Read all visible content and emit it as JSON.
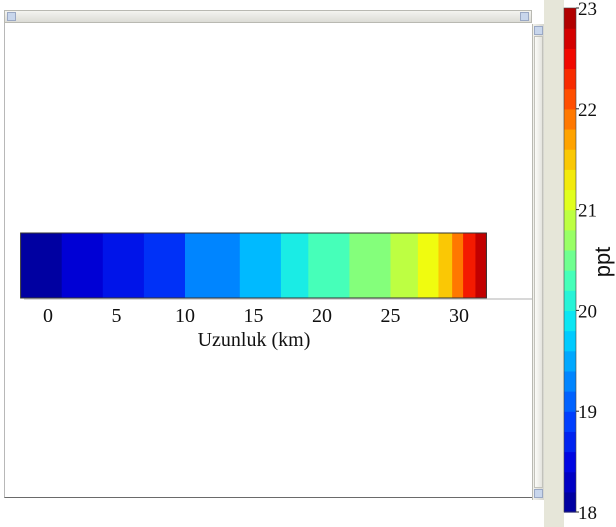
{
  "chart_data": {
    "type": "heatmap",
    "xlabel": "Uzunluk (km)",
    "xlim": [
      -2,
      32
    ],
    "x_ticks": [
      0,
      5,
      10,
      15,
      20,
      25,
      30
    ],
    "cells": [
      {
        "x0": -2,
        "x1": 1,
        "value": 18.1
      },
      {
        "x0": 1,
        "x1": 4,
        "value": 18.4
      },
      {
        "x0": 4,
        "x1": 7,
        "value": 18.6
      },
      {
        "x0": 7,
        "x1": 10,
        "value": 18.8
      },
      {
        "x0": 10,
        "x1": 14,
        "value": 19.3
      },
      {
        "x0": 14,
        "x1": 17,
        "value": 19.6
      },
      {
        "x0": 17,
        "x1": 19,
        "value": 20.0
      },
      {
        "x0": 19,
        "x1": 22,
        "value": 20.3
      },
      {
        "x0": 22,
        "x1": 25,
        "value": 20.6
      },
      {
        "x0": 25,
        "x1": 27,
        "value": 20.9
      },
      {
        "x0": 27,
        "x1": 28.5,
        "value": 21.2
      },
      {
        "x0": 28.5,
        "x1": 29.5,
        "value": 21.5
      },
      {
        "x0": 29.5,
        "x1": 30.3,
        "value": 21.9
      },
      {
        "x0": 30.3,
        "x1": 31.2,
        "value": 22.4
      },
      {
        "x0": 31.2,
        "x1": 32,
        "value": 22.8
      }
    ],
    "colorbar": {
      "label": "ppt",
      "range": [
        18,
        23
      ],
      "ticks": [
        18,
        19,
        20,
        21,
        22,
        23
      ],
      "colors": [
        "#00008f",
        "#0000df",
        "#0040ff",
        "#0090ff",
        "#00e0ff",
        "#40ffbf",
        "#9fff60",
        "#efff10",
        "#ffb000",
        "#ff5000",
        "#ef0000",
        "#9f0000"
      ]
    }
  }
}
